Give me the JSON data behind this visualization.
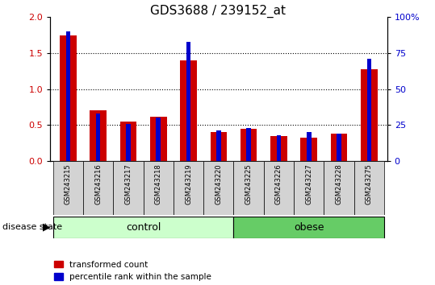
{
  "title": "GDS3688 / 239152_at",
  "samples": [
    "GSM243215",
    "GSM243216",
    "GSM243217",
    "GSM243218",
    "GSM243219",
    "GSM243220",
    "GSM243225",
    "GSM243226",
    "GSM243227",
    "GSM243228",
    "GSM243275"
  ],
  "transformed_count": [
    1.75,
    0.7,
    0.55,
    0.62,
    1.4,
    0.4,
    0.45,
    0.35,
    0.33,
    0.38,
    1.27
  ],
  "percentile_rank": [
    90,
    33,
    26,
    30,
    83,
    21,
    23,
    18,
    20,
    19,
    71
  ],
  "red_color": "#cc0000",
  "blue_color": "#0000cc",
  "ylim_left": [
    0,
    2
  ],
  "ylim_right": [
    0,
    100
  ],
  "yticks_left": [
    0,
    0.5,
    1.0,
    1.5,
    2.0
  ],
  "yticks_right": [
    0,
    25,
    50,
    75,
    100
  ],
  "ytick_labels_right": [
    "0",
    "25",
    "50",
    "75",
    "100%"
  ],
  "n_control": 6,
  "n_obese": 5,
  "control_label": "control",
  "obese_label": "obese",
  "group_label": "disease state",
  "legend_red": "transformed count",
  "legend_blue": "percentile rank within the sample",
  "red_bar_width": 0.55,
  "blue_bar_width": 0.15,
  "tick_label_color_left": "#cc0000",
  "tick_label_color_right": "#0000cc",
  "title_fontsize": 11,
  "tick_fontsize": 8,
  "group_bg_control": "#ccffcc",
  "group_bg_obese": "#66cc66",
  "sample_bg": "#d3d3d3",
  "grid_color": "#000000"
}
